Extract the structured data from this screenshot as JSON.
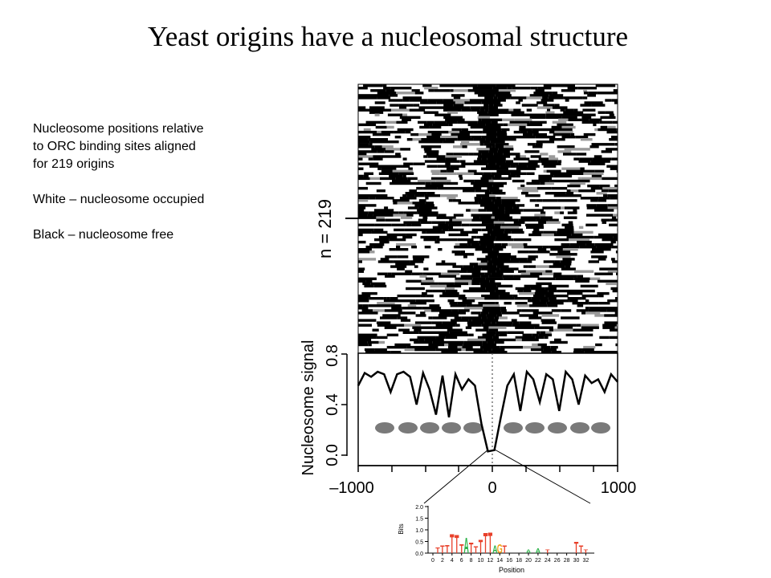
{
  "title": "Yeast origins have a nucleosomal structure",
  "caption": {
    "line1": "Nucleosome positions relative",
    "line2": "to ORC binding sites aligned",
    "line3": "for 219 origins",
    "legend_white": "White – nucleosome occupied",
    "legend_black": "Black – nucleosome free"
  },
  "heatmap": {
    "n_label": "n = 219",
    "colors": {
      "occupied": "#ffffff",
      "free": "#000000",
      "intermediate": "#9a9a9a"
    }
  },
  "profile_axis": {
    "ylabel": "Nucleosome signal",
    "yticks": [
      "0.0",
      "0.4",
      "0.8"
    ],
    "xticks": [
      "–1000",
      "0",
      "1000"
    ]
  },
  "motif_logo": {
    "ylabel": "Bits",
    "xlabel": "Position",
    "yticks": [
      "0.0",
      "0.5",
      "1.0",
      "1.5",
      "2.0"
    ],
    "xticks": [
      "0",
      "2",
      "4",
      "6",
      "8",
      "10",
      "12",
      "14",
      "16",
      "18",
      "20",
      "22",
      "24",
      "26",
      "28",
      "30",
      "32"
    ]
  },
  "chart_data": {
    "type": "line",
    "ylabel": "Nucleosome signal",
    "ylim": [
      0,
      0.8
    ],
    "xlim": [
      -1000,
      1000
    ],
    "x": [
      -1000,
      -950,
      -900,
      -850,
      -800,
      -750,
      -700,
      -650,
      -600,
      -550,
      -500,
      -450,
      -400,
      -350,
      -300,
      -250,
      -200,
      -150,
      -100,
      -50,
      0,
      50,
      100,
      150,
      200,
      250,
      300,
      350,
      400,
      450,
      500,
      550,
      600,
      650,
      700,
      750,
      800,
      850,
      900,
      950,
      1000
    ],
    "y": [
      0.55,
      0.65,
      0.62,
      0.66,
      0.64,
      0.5,
      0.64,
      0.66,
      0.62,
      0.4,
      0.65,
      0.52,
      0.32,
      0.63,
      0.3,
      0.64,
      0.52,
      0.6,
      0.55,
      0.25,
      0.03,
      0.04,
      0.3,
      0.55,
      0.64,
      0.35,
      0.66,
      0.6,
      0.42,
      0.64,
      0.6,
      0.35,
      0.66,
      0.6,
      0.4,
      0.63,
      0.57,
      0.6,
      0.5,
      0.64,
      0.58
    ]
  }
}
